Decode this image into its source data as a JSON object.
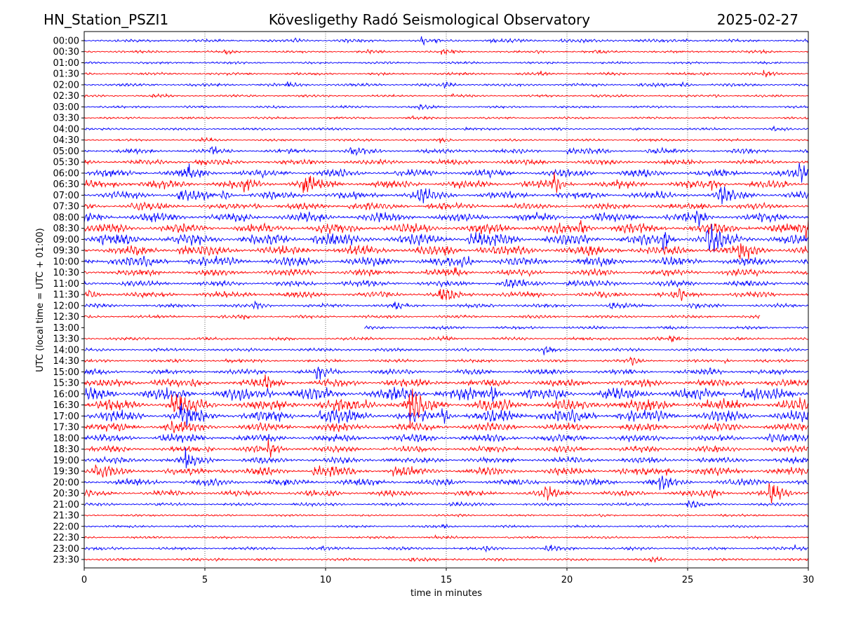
{
  "chart_data": {
    "type": "line",
    "title_left": "HN_Station_PSZI1",
    "title": "Kövesligethy Radó Seismological Observatory",
    "title_right": "2025-02-27",
    "xlabel": "time in minutes",
    "ylabel": "UTC (local time = UTC + 01:00)",
    "xlim": [
      0,
      30
    ],
    "xticks": [
      "0",
      "5",
      "10",
      "15",
      "20",
      "25",
      "30"
    ],
    "grid": "vertical dotted at 5-minute intervals",
    "colors": [
      "#0000ff",
      "#ff0000"
    ],
    "rows": [
      "00:00",
      "00:30",
      "01:00",
      "01:30",
      "02:00",
      "02:30",
      "03:00",
      "03:30",
      "04:00",
      "04:30",
      "05:00",
      "05:30",
      "06:00",
      "06:30",
      "07:00",
      "07:30",
      "08:00",
      "08:30",
      "09:00",
      "09:30",
      "10:00",
      "10:30",
      "11:00",
      "11:30",
      "12:00",
      "12:30",
      "13:00",
      "13:30",
      "14:00",
      "14:30",
      "15:00",
      "15:30",
      "16:00",
      "16:30",
      "17:00",
      "17:30",
      "18:00",
      "18:30",
      "19:00",
      "19:30",
      "20:00",
      "20:30",
      "21:00",
      "21:30",
      "22:00",
      "22:30",
      "23:00",
      "23:30"
    ],
    "relative_amplitude": [
      0.15,
      0.1,
      0.1,
      0.12,
      0.15,
      0.1,
      0.1,
      0.1,
      0.1,
      0.1,
      0.25,
      0.3,
      0.45,
      0.5,
      0.45,
      0.35,
      0.55,
      0.6,
      0.7,
      0.6,
      0.55,
      0.4,
      0.35,
      0.35,
      0.2,
      0.15,
      0.15,
      0.15,
      0.15,
      0.15,
      0.3,
      0.45,
      0.75,
      0.75,
      0.7,
      0.5,
      0.45,
      0.35,
      0.35,
      0.45,
      0.4,
      0.35,
      0.15,
      0.08,
      0.1,
      0.1,
      0.15,
      0.12
    ],
    "data_gaps": [
      {
        "row": "12:30",
        "from_min": 28.0,
        "to_min": 30
      },
      {
        "row": "13:00",
        "from_min": 0,
        "to_min": 11.6
      }
    ]
  }
}
